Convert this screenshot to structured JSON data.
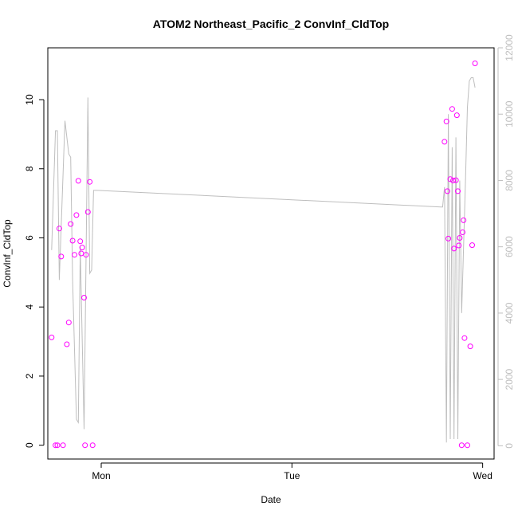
{
  "chart_data": {
    "type": "scatter",
    "title": "ATOM2 Northeast_Pacific_2 ConvInf_CldTop",
    "xlabel": "Date",
    "ylabel": "ConvInf_CldTop",
    "x_ticks": [
      "Mon",
      "Tue",
      "Wed"
    ],
    "x_tick_values": [
      1,
      2,
      3
    ],
    "xlim": [
      0.72,
      3.06
    ],
    "ylim": [
      -0.4,
      11.5
    ],
    "y_ticks": [
      0,
      2,
      4,
      6,
      8,
      10
    ],
    "y2lim": [
      -400,
      12000
    ],
    "y2_ticks": [
      0,
      2000,
      4000,
      6000,
      8000,
      10000,
      12000
    ],
    "grid": false,
    "series": [
      {
        "kind": "points",
        "axis": "left",
        "color": "#ff00ff",
        "x": [
          0.74,
          0.76,
          0.77,
          0.78,
          0.79,
          0.8,
          0.82,
          0.83,
          0.84,
          0.85,
          0.86,
          0.87,
          0.88,
          0.89,
          0.895,
          0.9,
          0.91,
          0.915,
          0.92,
          0.93,
          0.94,
          0.955,
          2.8,
          2.81,
          2.815,
          2.82,
          2.83,
          2.84,
          2.845,
          2.85,
          2.86,
          2.865,
          2.87,
          2.875,
          2.88,
          2.89,
          2.895,
          2.9,
          2.905,
          2.92,
          2.935,
          2.945,
          2.96
        ],
        "y": [
          3.12,
          0.0,
          0.0,
          6.27,
          5.46,
          0.0,
          2.92,
          3.55,
          6.4,
          5.92,
          5.51,
          6.66,
          7.65,
          5.9,
          5.55,
          5.72,
          4.27,
          0.0,
          5.51,
          6.75,
          7.62,
          0.0,
          8.78,
          9.37,
          7.35,
          5.98,
          7.7,
          9.73,
          7.66,
          5.69,
          7.67,
          9.55,
          7.35,
          5.78,
          6.0,
          0.0,
          6.16,
          6.51,
          3.1,
          0.0,
          2.86,
          5.79,
          11.05
        ]
      },
      {
        "kind": "line",
        "axis": "right",
        "color": "#bebebe",
        "x": [
          0.74,
          0.76,
          0.77,
          0.78,
          0.81,
          0.83,
          0.84,
          0.85,
          0.87,
          0.88,
          0.89,
          0.91,
          0.93,
          0.94,
          0.95,
          0.96,
          0.98,
          2.78,
          2.79,
          2.8,
          2.81,
          2.82,
          2.83,
          2.84,
          2.85,
          2.86,
          2.87,
          2.88,
          2.89,
          2.9,
          2.91,
          2.92,
          2.93,
          2.94,
          2.95,
          2.96
        ],
        "y": [
          5900,
          9500,
          9500,
          5000,
          9800,
          8800,
          8700,
          5000,
          800,
          700,
          6000,
          500,
          10500,
          5200,
          5300,
          7700,
          7700,
          7200,
          7200,
          7800,
          100,
          10000,
          200,
          9000,
          200,
          9300,
          200,
          8000,
          4000,
          6000,
          8000,
          10200,
          11000,
          11100,
          11100,
          10800
        ]
      }
    ]
  }
}
